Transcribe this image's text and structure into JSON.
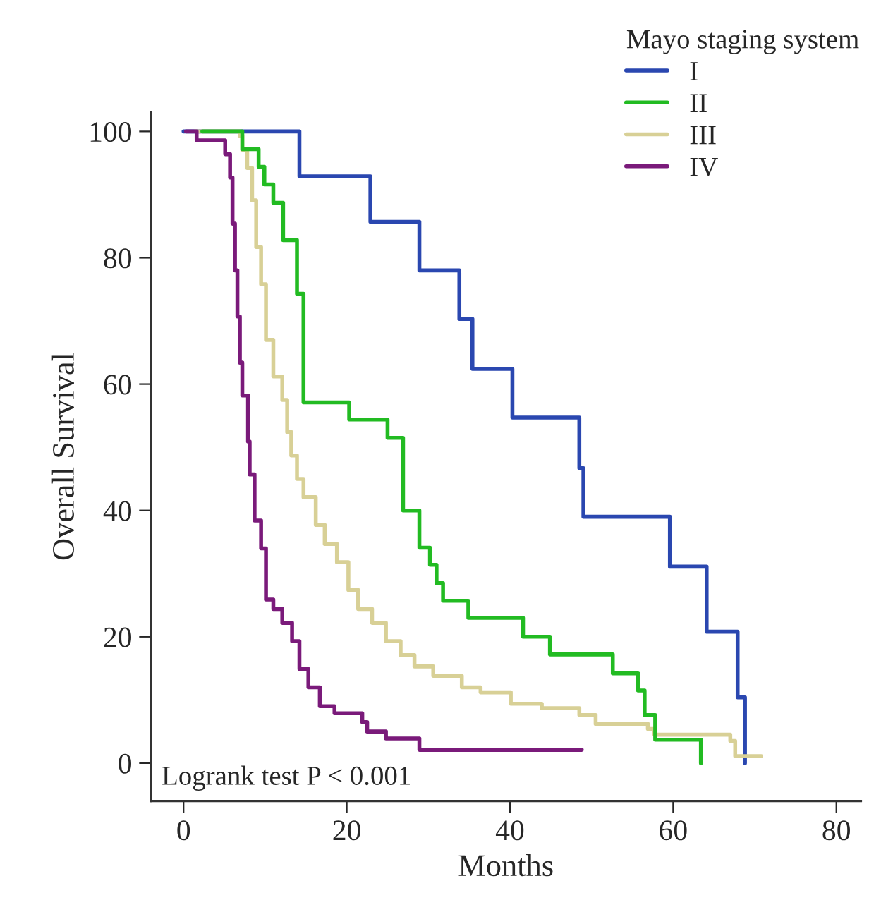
{
  "chart_data": {
    "type": "step",
    "xlabel": "Months",
    "ylabel": "Overall Survival",
    "legend_title": "Mayo staging system",
    "legend": "top right",
    "grid": false,
    "xlim": [
      -4,
      83
    ],
    "ylim": [
      -6,
      103
    ],
    "xticks": [
      0,
      20,
      40,
      60,
      80
    ],
    "yticks": [
      0,
      20,
      40,
      60,
      80,
      100
    ],
    "annotations": [
      "Logrank test P < 0.001"
    ],
    "series": [
      {
        "name": "I",
        "color": "#2a47b0",
        "x": [
          0,
          14.2,
          22.9,
          28.9,
          33.8,
          35.4,
          40.3,
          48.5,
          49,
          59.6,
          64.1,
          67.9,
          68.8
        ],
        "values": [
          100,
          92.9,
          85.7,
          78,
          70.3,
          62.4,
          54.7,
          46.7,
          39,
          31.1,
          20.8,
          10.4,
          0
        ]
      },
      {
        "name": "II",
        "color": "#22bb22",
        "x": [
          2.3,
          7.2,
          9.2,
          9.9,
          11.0,
          12.2,
          13.9,
          14.7,
          20.3,
          25.0,
          26.9,
          28.9,
          30.2,
          31.0,
          31.8,
          34.9,
          41.6,
          44.9,
          52.6,
          55.7,
          56.5,
          57.8,
          63.4
        ],
        "values": [
          100,
          97.2,
          94.4,
          91.6,
          88.7,
          82.8,
          74.3,
          57.1,
          54.4,
          51.5,
          40.0,
          34.1,
          31.4,
          28.5,
          25.7,
          23.0,
          20.0,
          17.2,
          14.2,
          11.5,
          7.6,
          3.7,
          0
        ]
      },
      {
        "name": "III",
        "color": "#d8d096",
        "x": [
          1.4,
          6.9,
          7.2,
          7.8,
          8.4,
          8.9,
          9.5,
          10.1,
          11.0,
          12.1,
          12.7,
          13.2,
          13.9,
          14.7,
          16.2,
          17.3,
          18.8,
          20.2,
          21.4,
          23.1,
          24.8,
          26.6,
          28.3,
          30.6,
          34.1,
          36.4,
          40.1,
          43.9,
          48.5,
          50.5,
          56.9,
          57.7,
          67.0,
          67.6,
          70.8
        ],
        "values": [
          100,
          99.3,
          97,
          94.2,
          89.1,
          81.7,
          75.8,
          67,
          61.2,
          57.5,
          52.4,
          48.7,
          45,
          42.1,
          37.7,
          34.7,
          31.8,
          27.4,
          24.4,
          22.2,
          19.3,
          17.1,
          15.3,
          13.8,
          12.0,
          11.2,
          9.4,
          8.7,
          7.6,
          6.2,
          5.4,
          4.5,
          3.5,
          1.1,
          1.1
        ]
      },
      {
        "name": "IV",
        "color": "#7a1a7a",
        "x": [
          0.3,
          1.6,
          5.1,
          5.7,
          6.0,
          6.3,
          6.6,
          6.9,
          7.2,
          7.9,
          8.1,
          8.7,
          9.5,
          10.1,
          11.0,
          12.1,
          13.3,
          14.2,
          15.3,
          16.7,
          18.5,
          21.9,
          22.5,
          24.8,
          28.9,
          48.8
        ],
        "values": [
          100,
          98.6,
          96.4,
          92.7,
          85.4,
          78,
          70.7,
          63.4,
          58.2,
          50.9,
          45.7,
          38.4,
          34,
          25.9,
          24.4,
          22.2,
          19.3,
          14.9,
          12.0,
          9.0,
          7.9,
          6.5,
          5.0,
          3.9,
          2.1,
          2.1
        ]
      }
    ]
  }
}
